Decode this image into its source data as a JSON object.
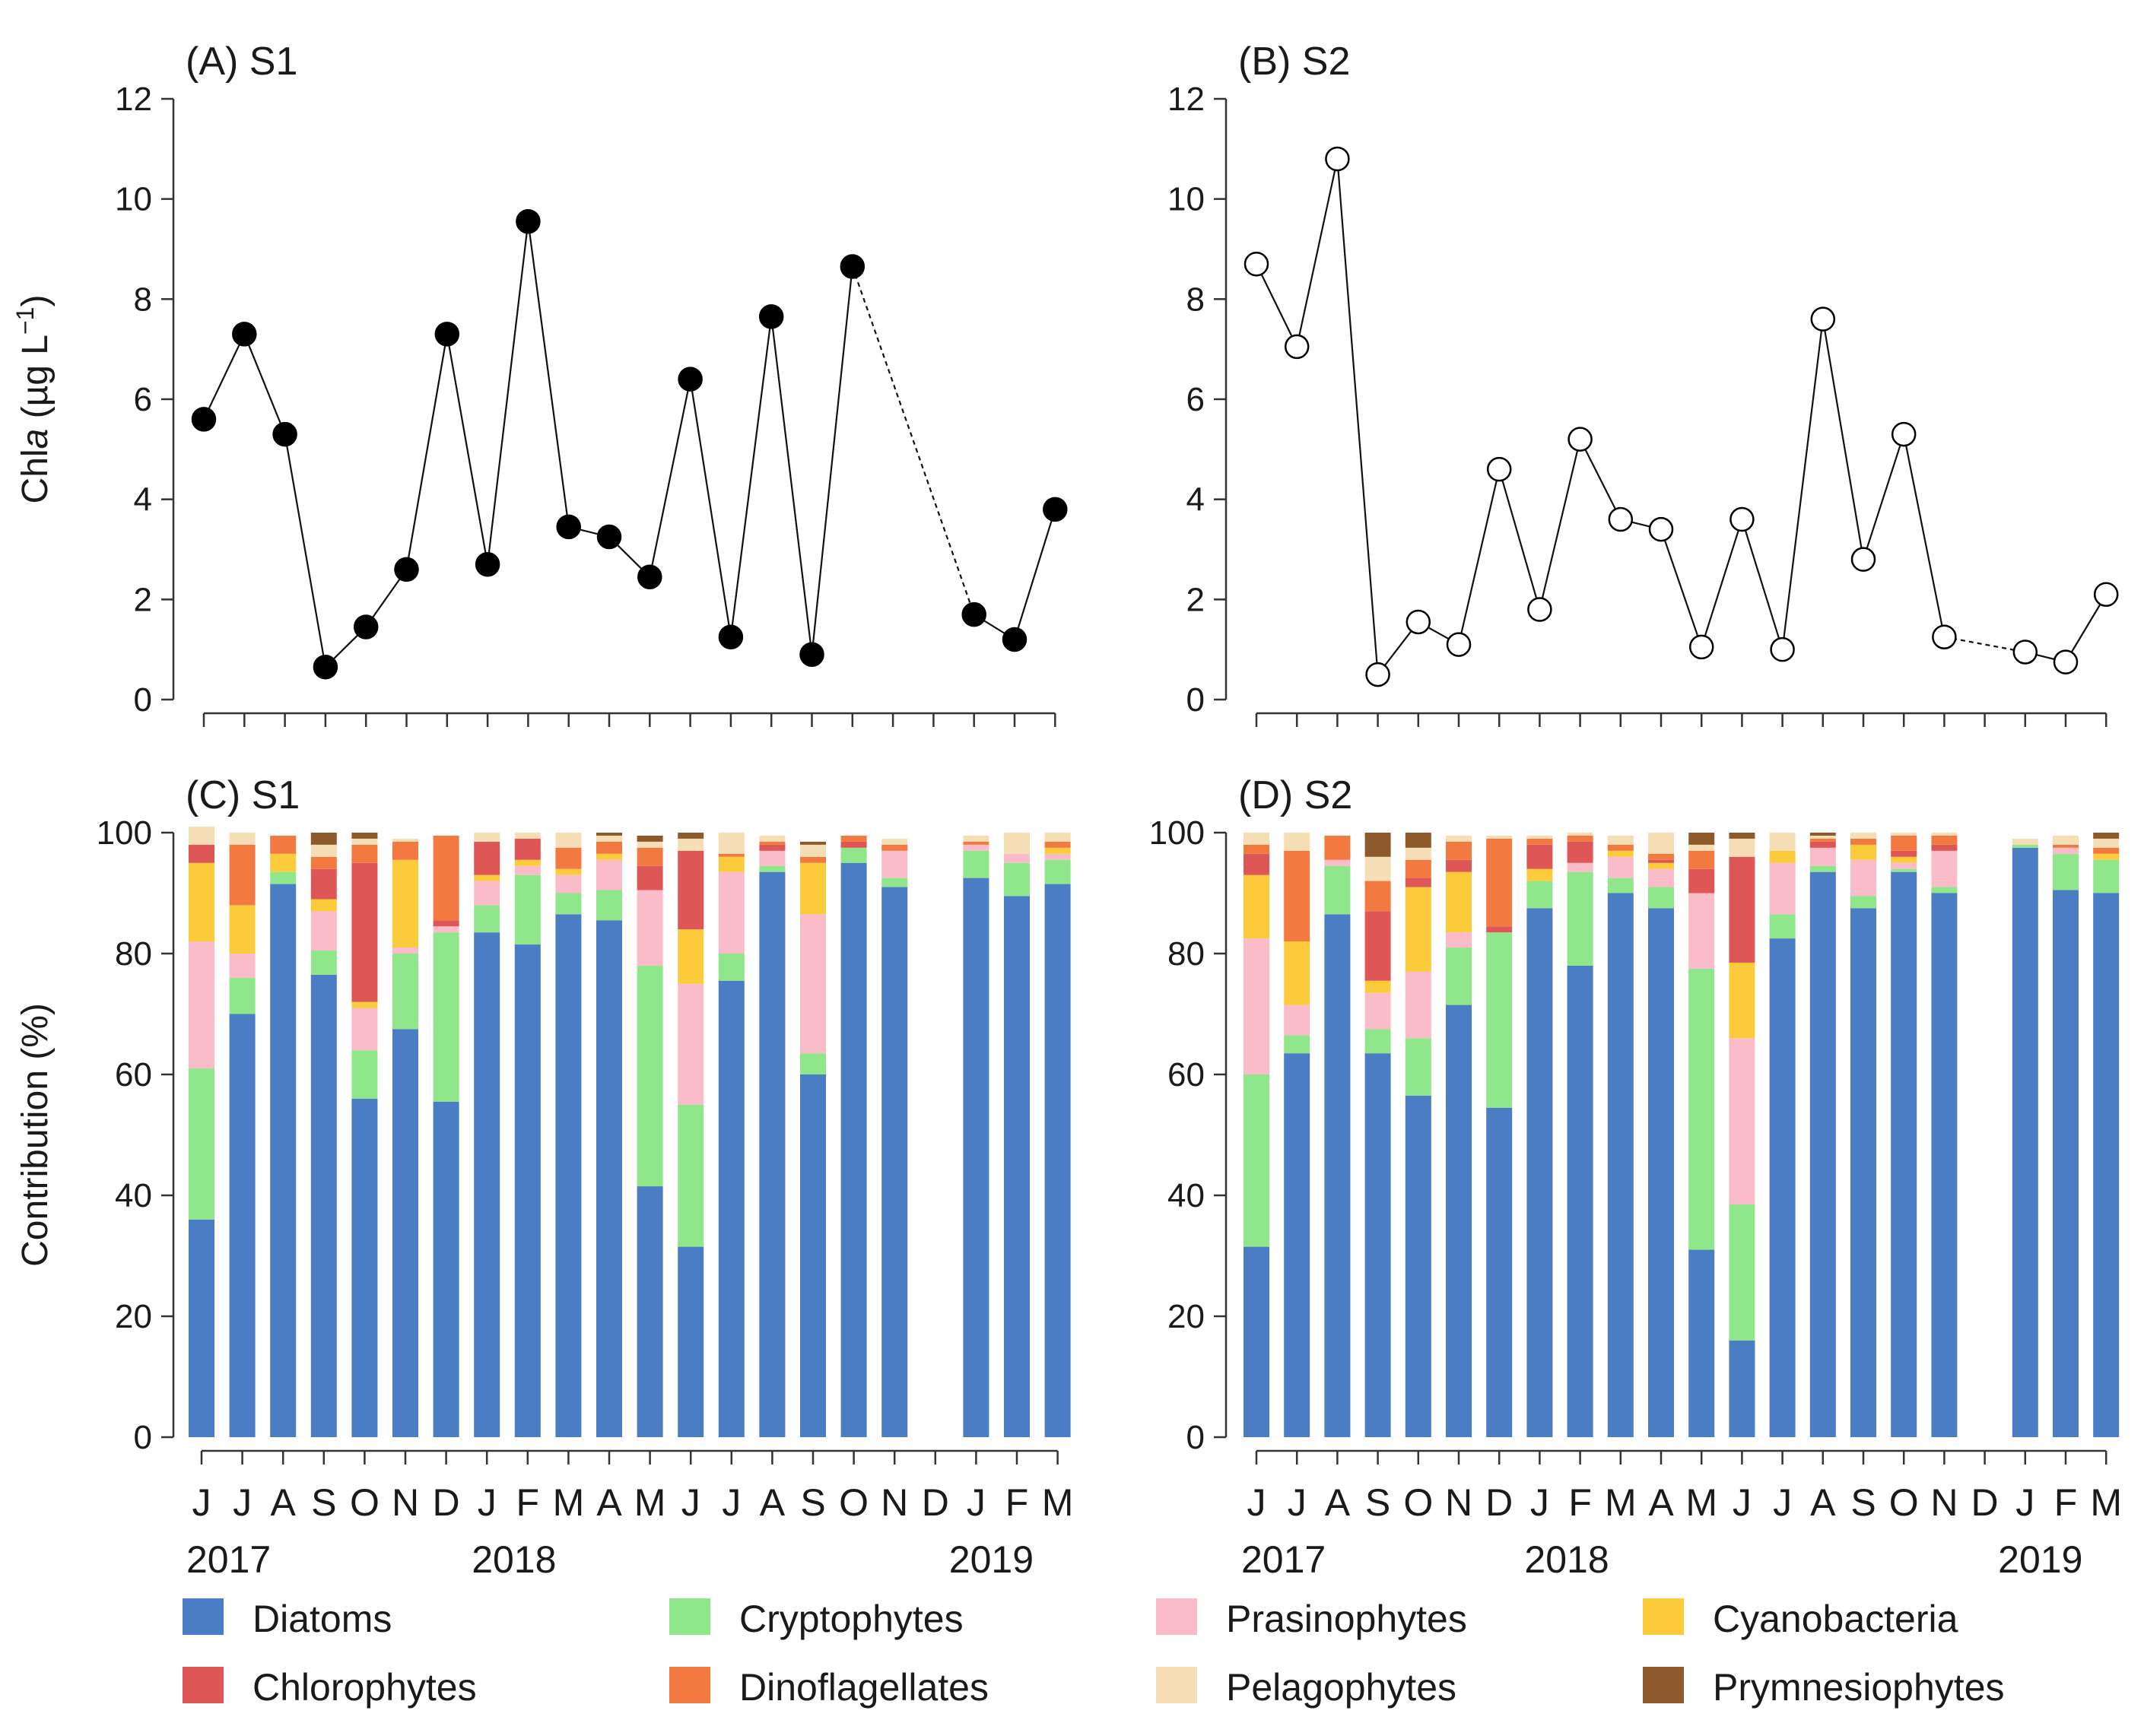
{
  "months": [
    "J",
    "J",
    "A",
    "S",
    "O",
    "N",
    "D",
    "J",
    "F",
    "M",
    "A",
    "M",
    "J",
    "J",
    "A",
    "S",
    "O",
    "N",
    "D",
    "J",
    "F",
    "M"
  ],
  "years": [
    "2017",
    "2018",
    "2019"
  ],
  "line_axis": {
    "ylabel_prefix": "Chl",
    "ylabel_italic": "a",
    "ylabel_unit": " (µg L",
    "ylabel_sup": "−1",
    "ylabel_close": ")"
  },
  "bar_axis": {
    "ylabel": "Contribution (%)"
  },
  "legend": [
    "Diatoms",
    "Cryptophytes",
    "Prasinophytes",
    "Cyanobacteria",
    "Chlorophytes",
    "Dinoflagellates",
    "Pelagophytes",
    "Prymnesiophytes"
  ],
  "colors": {
    "Diatoms": "#4a7dc4",
    "Cryptophytes": "#90e68a",
    "Prasinophytes": "#f9bcc8",
    "Cyanobacteria": "#fccb3c",
    "Chlorophytes": "#df5656",
    "Dinoflagellates": "#f27a40",
    "Pelagophytes": "#f5deb5",
    "Prymnesiophytes": "#8f5a2b"
  },
  "chart_data": [
    {
      "panel": "A",
      "title": "(A) S1",
      "type": "line",
      "marker": "filled",
      "ylim": [
        0,
        12
      ],
      "yticks": [
        0,
        2,
        4,
        6,
        8,
        10,
        12
      ],
      "x": [
        0,
        1,
        2,
        3,
        4,
        5,
        6,
        7,
        8,
        9,
        10,
        11,
        12,
        13,
        14,
        15,
        16,
        19,
        20,
        21
      ],
      "y": [
        5.6,
        7.3,
        5.3,
        0.65,
        1.45,
        2.6,
        7.3,
        2.7,
        9.55,
        3.45,
        3.25,
        2.45,
        6.4,
        1.25,
        7.65,
        0.9,
        8.65,
        1.7,
        1.2,
        3.8
      ],
      "gap_after_x": 16,
      "gap_style": "dotted"
    },
    {
      "panel": "B",
      "title": "(B) S2",
      "type": "line",
      "marker": "open",
      "ylim": [
        0,
        12
      ],
      "yticks": [
        0,
        2,
        4,
        6,
        8,
        10,
        12
      ],
      "x": [
        0,
        1,
        2,
        3,
        4,
        5,
        6,
        7,
        8,
        9,
        10,
        11,
        12,
        13,
        14,
        15,
        16,
        17,
        19,
        20,
        21
      ],
      "y": [
        8.7,
        7.05,
        10.8,
        0.5,
        1.55,
        1.1,
        4.6,
        1.8,
        5.2,
        3.6,
        3.4,
        1.05,
        3.6,
        1.0,
        7.6,
        2.8,
        5.3,
        1.25,
        0.95,
        0.75,
        2.1
      ],
      "gap_after_x": 17,
      "gap_style": "dotted"
    },
    {
      "panel": "C",
      "title": "(C) S1",
      "type": "bar",
      "stacked": true,
      "ylim": [
        0,
        100
      ],
      "yticks": [
        0,
        20,
        40,
        60,
        80,
        100
      ],
      "bars": [
        {
          "x": 0,
          "v": [
            36,
            25,
            21,
            13,
            3,
            0,
            3,
            0
          ]
        },
        {
          "x": 1,
          "v": [
            70,
            6,
            4,
            8,
            0,
            10,
            2,
            0
          ]
        },
        {
          "x": 2,
          "v": [
            91.5,
            2,
            0,
            3,
            0,
            3,
            0,
            0
          ]
        },
        {
          "x": 3,
          "v": [
            76.5,
            4,
            6.5,
            2,
            5,
            2,
            2,
            2
          ]
        },
        {
          "x": 4,
          "v": [
            56,
            8,
            7,
            1,
            23,
            3,
            1,
            1
          ]
        },
        {
          "x": 5,
          "v": [
            67.5,
            12.5,
            1,
            14.5,
            0,
            3,
            0.5,
            0
          ]
        },
        {
          "x": 6,
          "v": [
            55.5,
            28,
            1,
            0,
            1,
            14,
            0,
            0
          ]
        },
        {
          "x": 7,
          "v": [
            83.5,
            4.5,
            4,
            1,
            5.5,
            0,
            1.5,
            0
          ]
        },
        {
          "x": 8,
          "v": [
            81.5,
            11.5,
            1.5,
            1,
            3.5,
            0,
            1,
            0
          ]
        },
        {
          "x": 9,
          "v": [
            86.5,
            3.5,
            3,
            1,
            0,
            3.5,
            2.5,
            0
          ]
        },
        {
          "x": 10,
          "v": [
            85.5,
            5,
            5,
            1,
            0,
            2,
            1,
            0.5
          ]
        },
        {
          "x": 11,
          "v": [
            41.5,
            36.5,
            12.5,
            0,
            4,
            3,
            1,
            1
          ]
        },
        {
          "x": 12,
          "v": [
            31.5,
            23.5,
            20,
            9,
            13,
            0,
            2,
            1
          ]
        },
        {
          "x": 13,
          "v": [
            75.5,
            4.5,
            13.5,
            2.5,
            0,
            0.5,
            3.5,
            0
          ]
        },
        {
          "x": 14,
          "v": [
            93.5,
            1,
            2.5,
            0,
            1,
            0.5,
            1,
            0
          ]
        },
        {
          "x": 15,
          "v": [
            60,
            3.5,
            23,
            8.5,
            0,
            1,
            2,
            0.5
          ]
        },
        {
          "x": 16,
          "v": [
            95,
            2.5,
            0,
            0,
            1,
            1,
            0,
            0
          ]
        },
        {
          "x": 17,
          "v": [
            91,
            1.5,
            4.5,
            0,
            0,
            1,
            1,
            0
          ]
        },
        {
          "x": 19,
          "v": [
            92.5,
            4.5,
            1,
            0,
            0,
            0.5,
            1,
            0
          ]
        },
        {
          "x": 20,
          "v": [
            89.5,
            5.5,
            1.5,
            0,
            0,
            0,
            3.5,
            0
          ]
        },
        {
          "x": 21,
          "v": [
            91.5,
            4,
            1,
            1,
            0,
            1,
            1.5,
            0
          ]
        }
      ]
    },
    {
      "panel": "D",
      "title": "(D) S2",
      "type": "bar",
      "stacked": true,
      "ylim": [
        0,
        100
      ],
      "yticks": [
        0,
        20,
        40,
        60,
        80,
        100
      ],
      "bars": [
        {
          "x": 0,
          "v": [
            31.5,
            28.5,
            22.5,
            10.5,
            3.5,
            1.5,
            2,
            0
          ]
        },
        {
          "x": 1,
          "v": [
            63.5,
            3,
            5,
            10.5,
            0,
            15,
            3,
            0
          ]
        },
        {
          "x": 2,
          "v": [
            86.5,
            8,
            1,
            0,
            0,
            4,
            0,
            0
          ]
        },
        {
          "x": 3,
          "v": [
            63.5,
            4,
            6,
            2,
            11.5,
            5,
            4,
            4
          ]
        },
        {
          "x": 4,
          "v": [
            56.5,
            9.5,
            11,
            14,
            1.5,
            3,
            2,
            2.5
          ]
        },
        {
          "x": 5,
          "v": [
            71.5,
            9.5,
            2.5,
            10,
            2,
            3,
            1,
            0
          ]
        },
        {
          "x": 6,
          "v": [
            54.5,
            29,
            0,
            0,
            1,
            14.5,
            0.5,
            0
          ]
        },
        {
          "x": 7,
          "v": [
            87.5,
            4.5,
            0,
            2,
            4,
            1,
            0.5,
            0
          ]
        },
        {
          "x": 8,
          "v": [
            78,
            15.5,
            1.5,
            0,
            3.5,
            1,
            0.5,
            0
          ]
        },
        {
          "x": 9,
          "v": [
            90,
            2.5,
            3.5,
            1,
            0,
            1,
            1.5,
            0
          ]
        },
        {
          "x": 10,
          "v": [
            87.5,
            3.5,
            3,
            1,
            0.5,
            1,
            3.5,
            0
          ]
        },
        {
          "x": 11,
          "v": [
            31,
            46.5,
            12.5,
            0,
            4,
            3,
            1,
            2
          ]
        },
        {
          "x": 12,
          "v": [
            16,
            22.5,
            27.5,
            12.5,
            17.5,
            0,
            3,
            1
          ]
        },
        {
          "x": 13,
          "v": [
            82.5,
            4,
            8.5,
            2,
            0,
            0,
            3,
            0
          ]
        },
        {
          "x": 14,
          "v": [
            93.5,
            1,
            3,
            0,
            1,
            0.5,
            0.5,
            0.5
          ]
        },
        {
          "x": 15,
          "v": [
            87.5,
            2,
            6,
            2.5,
            0,
            1,
            1,
            0
          ]
        },
        {
          "x": 16,
          "v": [
            93.5,
            0.5,
            1,
            1,
            1,
            2.5,
            0.5,
            0
          ]
        },
        {
          "x": 17,
          "v": [
            90,
            1,
            6,
            0,
            1,
            1.5,
            0.5,
            0
          ]
        },
        {
          "x": 19,
          "v": [
            97.5,
            0.5,
            0,
            0,
            0,
            0,
            1,
            0
          ]
        },
        {
          "x": 20,
          "v": [
            90.5,
            6,
            1,
            0,
            0,
            0.5,
            1.5,
            0
          ]
        },
        {
          "x": 21,
          "v": [
            90,
            5.5,
            0,
            1,
            0,
            1,
            1.5,
            1
          ]
        }
      ]
    }
  ]
}
